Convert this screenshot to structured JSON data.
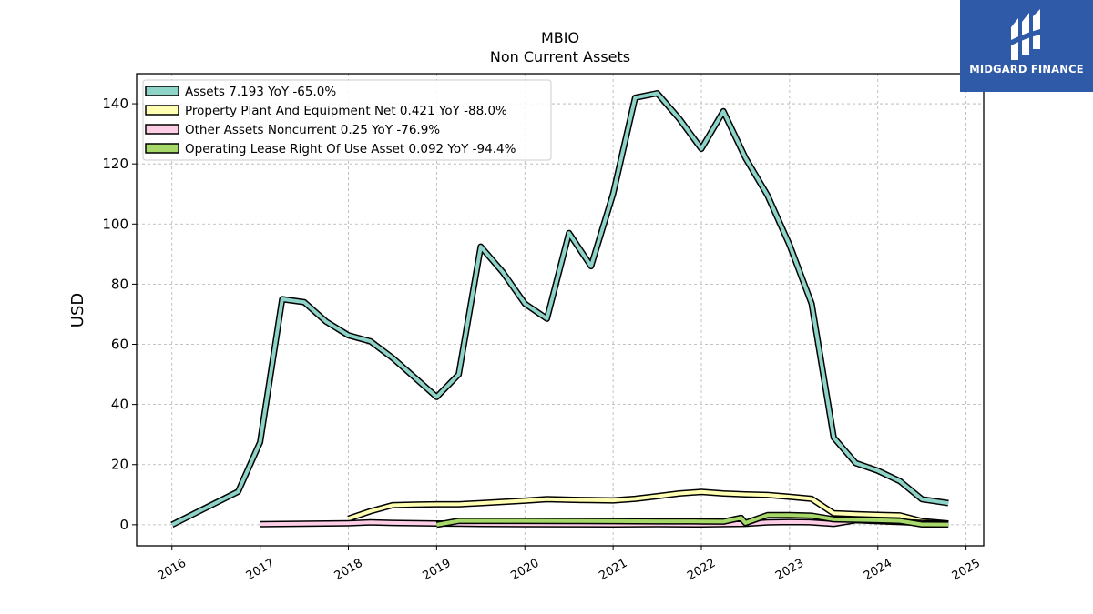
{
  "chart_data": {
    "type": "line",
    "title": "MBIO",
    "subtitle": "Non Current  Assets",
    "ylabel": "USD",
    "xlabel": "",
    "xlim": [
      2015.6,
      2025.2
    ],
    "ylim": [
      -7,
      150
    ],
    "y_ticks": [
      0,
      20,
      40,
      60,
      80,
      100,
      120,
      140
    ],
    "x_ticks": [
      2016,
      2017,
      2018,
      2019,
      2020,
      2021,
      2022,
      2023,
      2024,
      2025
    ],
    "grid": true,
    "legend_position": "top-left",
    "series": [
      {
        "name": "Assets",
        "legend_label": "Assets  7.193 YoY -65.0%",
        "color": "#8dd3c7",
        "points": [
          [
            2016.0,
            0.0
          ],
          [
            2016.75,
            11.0
          ],
          [
            2017.0,
            27.5
          ],
          [
            2017.25,
            75.0
          ],
          [
            2017.5,
            74.0
          ],
          [
            2017.75,
            67.5
          ],
          [
            2018.0,
            63.0
          ],
          [
            2018.25,
            61.0
          ],
          [
            2018.5,
            55.5
          ],
          [
            2018.75,
            49.0
          ],
          [
            2019.0,
            42.5
          ],
          [
            2019.25,
            50.0
          ],
          [
            2019.5,
            92.5
          ],
          [
            2019.75,
            84.0
          ],
          [
            2020.0,
            73.5
          ],
          [
            2020.25,
            68.5
          ],
          [
            2020.5,
            97.0
          ],
          [
            2020.75,
            86.0
          ],
          [
            2021.0,
            110.0
          ],
          [
            2021.25,
            142.0
          ],
          [
            2021.5,
            143.5
          ],
          [
            2021.75,
            135.0
          ],
          [
            2022.0,
            125.0
          ],
          [
            2022.25,
            137.5
          ],
          [
            2022.5,
            122.0
          ],
          [
            2022.75,
            109.5
          ],
          [
            2023.0,
            93.0
          ],
          [
            2023.25,
            73.5
          ],
          [
            2023.5,
            29.0
          ],
          [
            2023.75,
            20.5
          ],
          [
            2024.0,
            18.0
          ],
          [
            2024.25,
            14.5
          ],
          [
            2024.5,
            8.5
          ],
          [
            2024.8,
            7.2
          ]
        ]
      },
      {
        "name": "Property Plant And Equipment Net",
        "legend_label": "Property Plant And Equipment Net  0.421 YoY -88.0%",
        "color": "#ffffb3",
        "points": [
          [
            2018.0,
            2.0
          ],
          [
            2018.25,
            4.5
          ],
          [
            2018.5,
            6.5
          ],
          [
            2018.75,
            6.7
          ],
          [
            2019.0,
            6.8
          ],
          [
            2019.25,
            6.8
          ],
          [
            2019.5,
            7.2
          ],
          [
            2019.75,
            7.6
          ],
          [
            2020.0,
            8.0
          ],
          [
            2020.25,
            8.5
          ],
          [
            2020.5,
            8.3
          ],
          [
            2020.75,
            8.2
          ],
          [
            2021.0,
            8.1
          ],
          [
            2021.25,
            8.6
          ],
          [
            2021.5,
            9.5
          ],
          [
            2021.75,
            10.4
          ],
          [
            2022.0,
            10.9
          ],
          [
            2022.25,
            10.4
          ],
          [
            2022.5,
            10.1
          ],
          [
            2022.75,
            9.9
          ],
          [
            2023.0,
            9.3
          ],
          [
            2023.25,
            8.6
          ],
          [
            2023.5,
            3.8
          ],
          [
            2023.75,
            3.5
          ],
          [
            2024.0,
            3.3
          ],
          [
            2024.25,
            3.1
          ],
          [
            2024.5,
            1.2
          ],
          [
            2024.8,
            0.42
          ]
        ]
      },
      {
        "name": "Other Assets Noncurrent",
        "legend_label": "Other Assets Noncurrent  0.25 YoY -76.9%",
        "color": "#fccde5",
        "points": [
          [
            2017.0,
            0.2
          ],
          [
            2017.5,
            0.35
          ],
          [
            2018.0,
            0.5
          ],
          [
            2018.25,
            0.8
          ],
          [
            2018.5,
            0.6
          ],
          [
            2019.0,
            0.4
          ],
          [
            2019.5,
            0.25
          ],
          [
            2020.0,
            0.2
          ],
          [
            2020.5,
            0.15
          ],
          [
            2021.0,
            0.1
          ],
          [
            2021.5,
            0.2
          ],
          [
            2022.0,
            0.1
          ],
          [
            2022.5,
            0.3
          ],
          [
            2022.75,
            0.8
          ],
          [
            2023.0,
            0.9
          ],
          [
            2023.25,
            0.8
          ],
          [
            2023.5,
            0.3
          ],
          [
            2023.75,
            1.5
          ],
          [
            2024.0,
            1.2
          ],
          [
            2024.5,
            0.6
          ],
          [
            2024.8,
            0.25
          ]
        ]
      },
      {
        "name": "Operating Lease Right Of Use Asset",
        "legend_label": "Operating Lease Right Of Use Asset  0.092 YoY -94.4%",
        "color": "#a6d96a",
        "points": [
          [
            2019.0,
            0.0
          ],
          [
            2019.25,
            1.3
          ],
          [
            2019.5,
            1.3
          ],
          [
            2020.0,
            1.3
          ],
          [
            2020.5,
            1.25
          ],
          [
            2021.0,
            1.2
          ],
          [
            2021.5,
            1.15
          ],
          [
            2022.0,
            1.1
          ],
          [
            2022.25,
            1.05
          ],
          [
            2022.45,
            2.3
          ],
          [
            2022.5,
            0.6
          ],
          [
            2022.75,
            3.2
          ],
          [
            2023.0,
            3.2
          ],
          [
            2023.25,
            3.0
          ],
          [
            2023.5,
            1.8
          ],
          [
            2024.0,
            1.5
          ],
          [
            2024.25,
            1.3
          ],
          [
            2024.5,
            0.1
          ],
          [
            2024.8,
            0.09
          ]
        ]
      }
    ]
  },
  "brand": {
    "name": "MIDGARD FINANCE",
    "background": "#2f5aa8"
  }
}
